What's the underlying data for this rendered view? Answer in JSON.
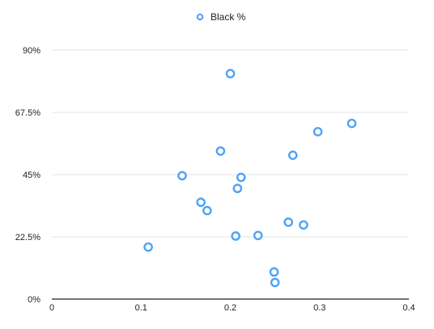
{
  "chart_data": {
    "type": "scatter",
    "series": [
      {
        "name": "Black %",
        "color": "#4da3f5",
        "points": [
          {
            "x": 0.108,
            "y": 18.8
          },
          {
            "x": 0.146,
            "y": 44.6
          },
          {
            "x": 0.167,
            "y": 35.0
          },
          {
            "x": 0.174,
            "y": 32.0
          },
          {
            "x": 0.189,
            "y": 53.5
          },
          {
            "x": 0.2,
            "y": 81.5
          },
          {
            "x": 0.206,
            "y": 22.8
          },
          {
            "x": 0.208,
            "y": 40.0
          },
          {
            "x": 0.212,
            "y": 44.0
          },
          {
            "x": 0.231,
            "y": 23.0
          },
          {
            "x": 0.249,
            "y": 9.8
          },
          {
            "x": 0.25,
            "y": 6.0
          },
          {
            "x": 0.265,
            "y": 27.8
          },
          {
            "x": 0.27,
            "y": 52.0
          },
          {
            "x": 0.282,
            "y": 26.8
          },
          {
            "x": 0.298,
            "y": 60.5
          },
          {
            "x": 0.336,
            "y": 63.5
          }
        ]
      }
    ],
    "x_ticks": [
      "0",
      "0.1",
      "0.2",
      "0.3",
      "0.4"
    ],
    "y_ticks": [
      "0%",
      "22.5%",
      "45%",
      "67.5%",
      "90%"
    ],
    "xlim": [
      0,
      0.4
    ],
    "ylim": [
      0,
      90
    ],
    "grid": true,
    "legend_position": "top-center"
  }
}
